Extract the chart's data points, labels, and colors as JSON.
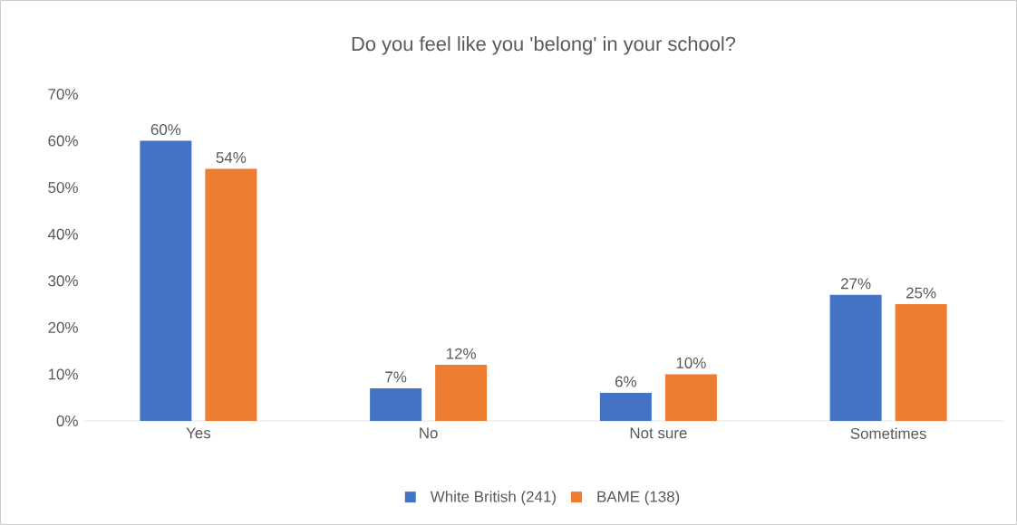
{
  "chart_data": {
    "type": "bar",
    "title": "Do you feel like you 'belong' in your school?",
    "categories": [
      "Yes",
      "No",
      "Not sure",
      "Sometimes"
    ],
    "series": [
      {
        "name": "White British (241)",
        "color": "#4472c4",
        "values": [
          60,
          7,
          6,
          27
        ],
        "value_labels": [
          "60%",
          "7%",
          "6%",
          "27%"
        ]
      },
      {
        "name": "BAME (138)",
        "color": "#ed7d31",
        "values": [
          54,
          12,
          10,
          25
        ],
        "value_labels": [
          "54%",
          "12%",
          "10%",
          "25%"
        ]
      }
    ],
    "ylim": [
      0,
      70
    ],
    "yticks": [
      {
        "value": 0,
        "label": "0%"
      },
      {
        "value": 10,
        "label": "10%"
      },
      {
        "value": 20,
        "label": "20%"
      },
      {
        "value": 30,
        "label": "30%"
      },
      {
        "value": 40,
        "label": "40%"
      },
      {
        "value": 50,
        "label": "50%"
      },
      {
        "value": 60,
        "label": "60%"
      },
      {
        "value": 70,
        "label": "70%"
      }
    ],
    "legend": "bottom"
  }
}
